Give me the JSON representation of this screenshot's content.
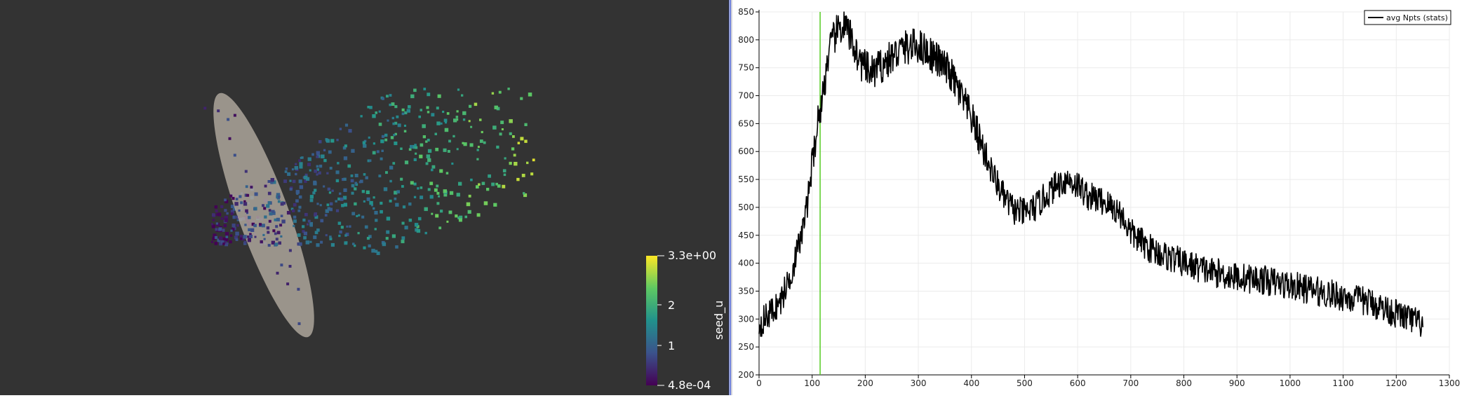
{
  "scene": {
    "colorbar": {
      "title": "seed_u",
      "max_label": "3.3e+00",
      "mid_labels": [
        "2",
        "1"
      ],
      "min_label": "4.8e-04",
      "colormap": [
        "#440154",
        "#3b528b",
        "#21918c",
        "#5ec962",
        "#fde725"
      ]
    },
    "background_color": "#333333",
    "ellipse_color": "#b7b0a4"
  },
  "chart_data": {
    "type": "line",
    "series": [
      {
        "name": "avg Npts (stats)",
        "color": "#000000",
        "x_range": [
          0,
          1250
        ],
        "keypoints": [
          [
            0,
            290
          ],
          [
            20,
            310
          ],
          [
            40,
            330
          ],
          [
            60,
            380
          ],
          [
            80,
            450
          ],
          [
            90,
            500
          ],
          [
            100,
            580
          ],
          [
            110,
            650
          ],
          [
            120,
            700
          ],
          [
            130,
            770
          ],
          [
            140,
            800
          ],
          [
            150,
            820
          ],
          [
            160,
            825
          ],
          [
            175,
            800
          ],
          [
            190,
            760
          ],
          [
            210,
            740
          ],
          [
            240,
            760
          ],
          [
            270,
            785
          ],
          [
            300,
            790
          ],
          [
            330,
            770
          ],
          [
            360,
            740
          ],
          [
            400,
            660
          ],
          [
            420,
            610
          ],
          [
            440,
            560
          ],
          [
            460,
            520
          ],
          [
            480,
            495
          ],
          [
            500,
            490
          ],
          [
            520,
            500
          ],
          [
            540,
            520
          ],
          [
            560,
            540
          ],
          [
            580,
            550
          ],
          [
            600,
            540
          ],
          [
            620,
            520
          ],
          [
            650,
            510
          ],
          [
            680,
            490
          ],
          [
            700,
            455
          ],
          [
            730,
            430
          ],
          [
            760,
            415
          ],
          [
            800,
            400
          ],
          [
            850,
            385
          ],
          [
            900,
            375
          ],
          [
            950,
            370
          ],
          [
            1000,
            360
          ],
          [
            1050,
            350
          ],
          [
            1100,
            340
          ],
          [
            1150,
            330
          ],
          [
            1200,
            310
          ],
          [
            1250,
            290
          ]
        ]
      }
    ],
    "marker_x": 115,
    "marker_color": "#55cc22",
    "xlim": [
      0,
      1300
    ],
    "ylim": [
      200,
      850
    ],
    "x_ticks": [
      0,
      100,
      200,
      300,
      400,
      500,
      600,
      700,
      800,
      900,
      1000,
      1100,
      1200,
      1300
    ],
    "y_ticks": [
      200,
      250,
      300,
      350,
      400,
      450,
      500,
      550,
      600,
      650,
      700,
      750,
      800,
      850
    ],
    "grid": true,
    "legend_position": "top-right"
  }
}
